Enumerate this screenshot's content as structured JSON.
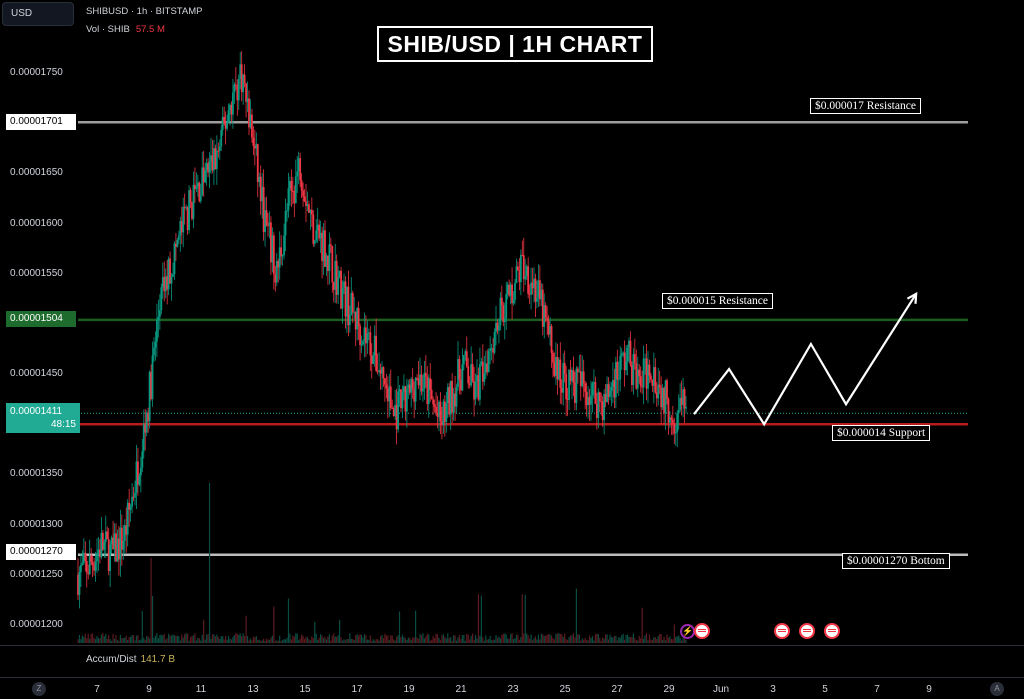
{
  "header": {
    "currency": "USD",
    "symbol_line": "SHIBUSD · 1h · BITSTAMP",
    "vol_label": "Vol · SHIB",
    "vol_value": "57.5 M"
  },
  "chart_data": {
    "type": "candlestick",
    "title": "SHIB/USD | 1H CHART",
    "symbol": "SHIBUSD",
    "interval": "1h",
    "exchange": "BITSTAMP",
    "y_ticks": [
      "0.00001750",
      "0.00001650",
      "0.00001600",
      "0.00001550",
      "0.00001450",
      "0.00001350",
      "0.00001300",
      "0.00001250",
      "0.00001200"
    ],
    "ylim": [
      1.185e-05,
      1.775e-05
    ],
    "x_ticks": [
      "7",
      "9",
      "11",
      "13",
      "15",
      "17",
      "19",
      "21",
      "23",
      "25",
      "27",
      "29",
      "Jun",
      "3",
      "5",
      "7",
      "9"
    ],
    "close_path": [
      [
        0,
        1.25e-05
      ],
      [
        2,
        1.26e-05
      ],
      [
        4,
        1.28e-05
      ],
      [
        6,
        1.27e-05
      ],
      [
        8,
        1.29e-05
      ],
      [
        10,
        1.35e-05
      ],
      [
        12,
        1.42e-05
      ],
      [
        14,
        1.52e-05
      ],
      [
        16,
        1.56e-05
      ],
      [
        18,
        1.6e-05
      ],
      [
        20,
        1.63e-05
      ],
      [
        22,
        1.65e-05
      ],
      [
        24,
        1.67e-05
      ],
      [
        26,
        1.72e-05
      ],
      [
        28,
        1.75e-05
      ],
      [
        30,
        1.68e-05
      ],
      [
        32,
        1.6e-05
      ],
      [
        34,
        1.55e-05
      ],
      [
        36,
        1.62e-05
      ],
      [
        38,
        1.66e-05
      ],
      [
        40,
        1.6e-05
      ],
      [
        42,
        1.58e-05
      ],
      [
        44,
        1.55e-05
      ],
      [
        46,
        1.52e-05
      ],
      [
        48,
        1.5e-05
      ],
      [
        50,
        1.48e-05
      ],
      [
        52,
        1.45e-05
      ],
      [
        54,
        1.41e-05
      ],
      [
        56,
        1.42e-05
      ],
      [
        58,
        1.45e-05
      ],
      [
        60,
        1.43e-05
      ],
      [
        62,
        1.4e-05
      ],
      [
        64,
        1.43e-05
      ],
      [
        66,
        1.46e-05
      ],
      [
        68,
        1.43e-05
      ],
      [
        70,
        1.47e-05
      ],
      [
        72,
        1.51e-05
      ],
      [
        74,
        1.53e-05
      ],
      [
        76,
        1.56e-05
      ],
      [
        78,
        1.54e-05
      ],
      [
        80,
        1.5e-05
      ],
      [
        82,
        1.45e-05
      ],
      [
        84,
        1.44e-05
      ],
      [
        86,
        1.44e-05
      ],
      [
        88,
        1.43e-05
      ],
      [
        90,
        1.42e-05
      ],
      [
        92,
        1.45e-05
      ],
      [
        94,
        1.47e-05
      ],
      [
        96,
        1.44e-05
      ],
      [
        98,
        1.46e-05
      ],
      [
        100,
        1.43e-05
      ],
      [
        102,
        1.41e-05
      ],
      [
        104,
        1.42e-05
      ]
    ],
    "projection_path": [
      [
        104,
        1.41e-05
      ],
      [
        110,
        1.455e-05
      ],
      [
        116,
        1.4e-05
      ],
      [
        124,
        1.48e-05
      ],
      [
        130,
        1.42e-05
      ],
      [
        142,
        1.53e-05
      ]
    ],
    "levels": [
      {
        "price": 1.701e-05,
        "tag": "0.00001701",
        "label": "$0.000017 Resistance",
        "color": "#9e9e9e"
      },
      {
        "price": 1.504e-05,
        "tag": "0.00001504",
        "label": "$0.000015 Resistance",
        "color": "#1b5e20"
      },
      {
        "price": 1.4e-05,
        "tag": "",
        "label": "$0.000014 Support",
        "color": "#b71c1c"
      },
      {
        "price": 1.27e-05,
        "tag": "0.00001270",
        "label": "$0.00001270 Bottom",
        "color": "#bdbdbd"
      }
    ],
    "current_price": "0.00001411",
    "countdown": "48:15",
    "indicator": {
      "name": "Accum/Dist",
      "value": "141.7 B"
    },
    "grid": false
  },
  "bottom_bar": {
    "left_icon": "Z",
    "right_icon": "A"
  },
  "colors": {
    "up": "#089981",
    "down": "#f23645",
    "background": "#000000"
  }
}
